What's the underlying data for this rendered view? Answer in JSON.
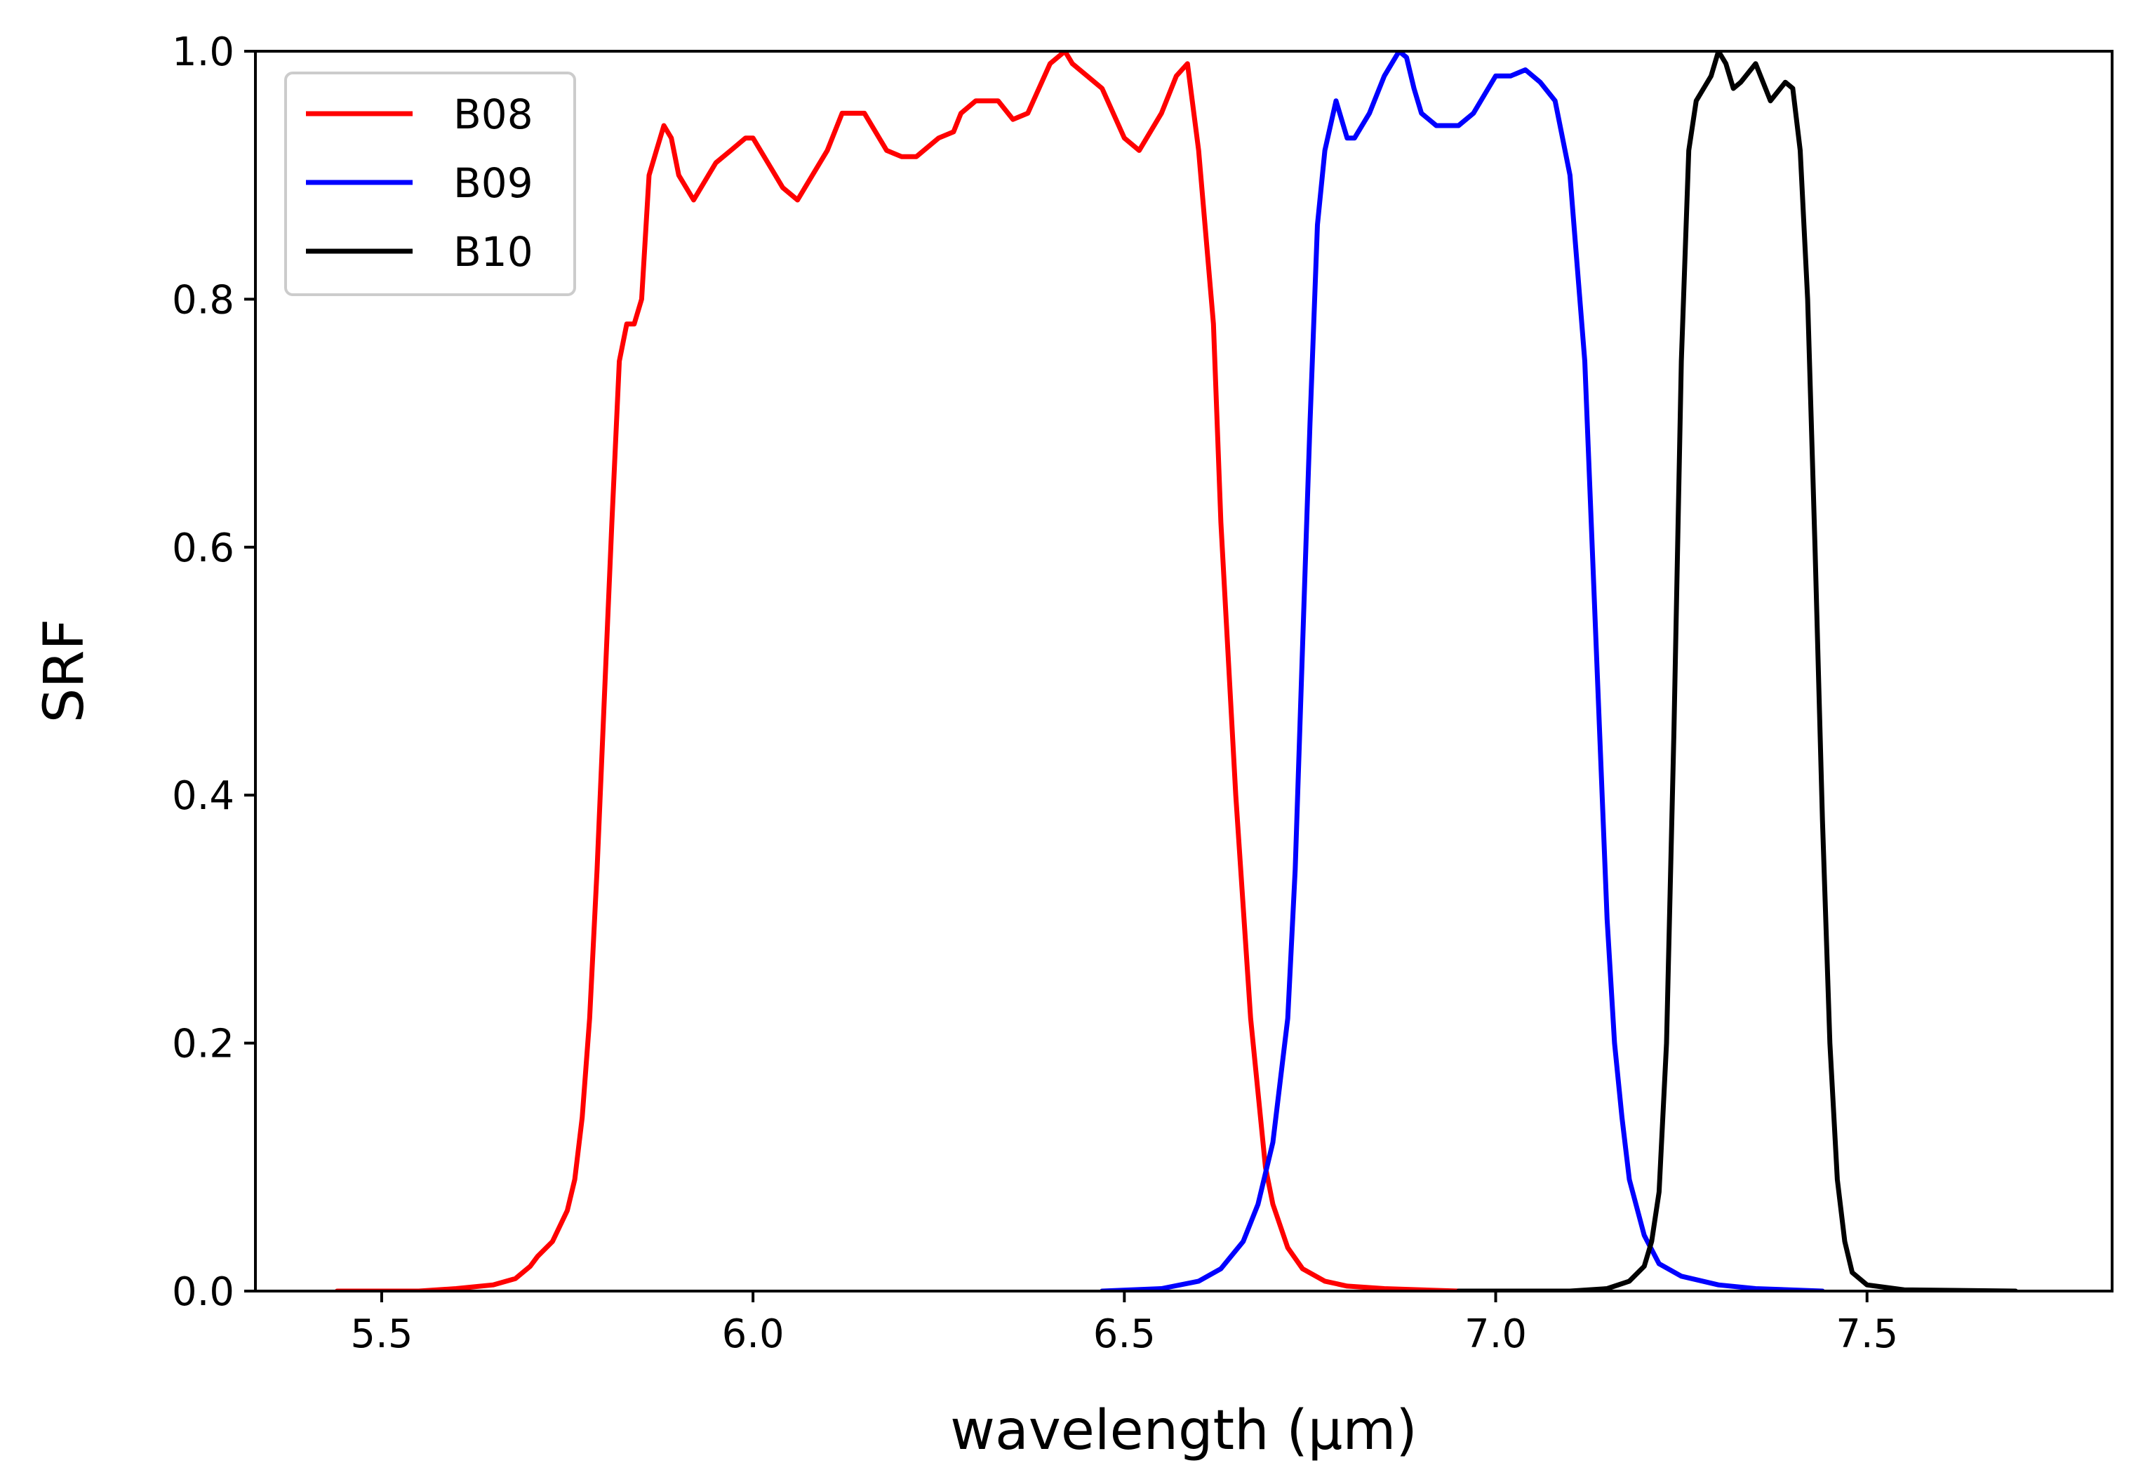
{
  "chart_data": {
    "type": "line",
    "title": "",
    "xlabel": "wavelength (µm)",
    "ylabel": "SRF",
    "xlim": [
      5.33,
      7.83
    ],
    "ylim": [
      0.0,
      1.0
    ],
    "grid": false,
    "legend": "top-left",
    "xticks": [
      5.5,
      6.0,
      6.5,
      7.0,
      7.5
    ],
    "xtick_labels": [
      "5.5",
      "6.0",
      "6.5",
      "7.0",
      "7.5"
    ],
    "yticks": [
      0.0,
      0.2,
      0.4,
      0.6,
      0.8,
      1.0
    ],
    "ytick_labels": [
      "0.0",
      "0.2",
      "0.4",
      "0.6",
      "0.8",
      "1.0"
    ],
    "series": [
      {
        "name": "B08",
        "color": "#ff0000",
        "x": [
          5.44,
          5.55,
          5.6,
          5.65,
          5.68,
          5.7,
          5.71,
          5.73,
          5.75,
          5.76,
          5.77,
          5.78,
          5.79,
          5.8,
          5.81,
          5.82,
          5.83,
          5.84,
          5.85,
          5.86,
          5.87,
          5.875,
          5.88,
          5.89,
          5.9,
          5.92,
          5.94,
          5.95,
          5.97,
          5.99,
          6.0,
          6.02,
          6.04,
          6.06,
          6.08,
          6.1,
          6.12,
          6.15,
          6.18,
          6.2,
          6.22,
          6.25,
          6.27,
          6.28,
          6.3,
          6.33,
          6.35,
          6.37,
          6.4,
          6.42,
          6.43,
          6.45,
          6.47,
          6.5,
          6.52,
          6.55,
          6.57,
          6.585,
          6.6,
          6.62,
          6.63,
          6.65,
          6.67,
          6.69,
          6.7,
          6.72,
          6.74,
          6.77,
          6.8,
          6.85,
          6.95,
          7.0
        ],
        "y": [
          0.0,
          0.0,
          0.002,
          0.005,
          0.01,
          0.02,
          0.028,
          0.04,
          0.065,
          0.09,
          0.14,
          0.22,
          0.34,
          0.48,
          0.62,
          0.75,
          0.78,
          0.78,
          0.8,
          0.9,
          0.92,
          0.93,
          0.94,
          0.93,
          0.9,
          0.88,
          0.9,
          0.91,
          0.92,
          0.93,
          0.93,
          0.91,
          0.89,
          0.88,
          0.9,
          0.92,
          0.95,
          0.95,
          0.92,
          0.915,
          0.915,
          0.93,
          0.935,
          0.95,
          0.96,
          0.96,
          0.945,
          0.95,
          0.99,
          1.0,
          0.99,
          0.98,
          0.97,
          0.93,
          0.92,
          0.95,
          0.98,
          0.99,
          0.92,
          0.78,
          0.62,
          0.4,
          0.22,
          0.1,
          0.07,
          0.035,
          0.018,
          0.008,
          0.004,
          0.002,
          0.0,
          0.0
        ]
      },
      {
        "name": "B09",
        "color": "#0000ff",
        "x": [
          6.47,
          6.55,
          6.6,
          6.63,
          6.66,
          6.68,
          6.7,
          6.72,
          6.73,
          6.74,
          6.75,
          6.76,
          6.77,
          6.785,
          6.8,
          6.81,
          6.83,
          6.85,
          6.87,
          6.88,
          6.89,
          6.9,
          6.92,
          6.95,
          6.97,
          6.99,
          7.0,
          7.02,
          7.04,
          7.06,
          7.08,
          7.1,
          7.12,
          7.13,
          7.14,
          7.15,
          7.16,
          7.17,
          7.18,
          7.2,
          7.22,
          7.25,
          7.3,
          7.35,
          7.44
        ],
        "y": [
          0.0,
          0.002,
          0.008,
          0.018,
          0.04,
          0.07,
          0.12,
          0.22,
          0.34,
          0.52,
          0.7,
          0.86,
          0.92,
          0.96,
          0.93,
          0.93,
          0.95,
          0.98,
          1.0,
          0.995,
          0.97,
          0.95,
          0.94,
          0.94,
          0.95,
          0.97,
          0.98,
          0.98,
          0.985,
          0.975,
          0.96,
          0.9,
          0.75,
          0.6,
          0.45,
          0.3,
          0.2,
          0.14,
          0.09,
          0.045,
          0.022,
          0.012,
          0.005,
          0.002,
          0.0
        ]
      },
      {
        "name": "B10",
        "color": "#000000",
        "x": [
          6.95,
          7.1,
          7.15,
          7.18,
          7.2,
          7.21,
          7.22,
          7.23,
          7.24,
          7.25,
          7.26,
          7.27,
          7.28,
          7.29,
          7.3,
          7.31,
          7.32,
          7.33,
          7.35,
          7.37,
          7.39,
          7.4,
          7.41,
          7.42,
          7.43,
          7.44,
          7.45,
          7.46,
          7.47,
          7.48,
          7.5,
          7.55,
          7.7
        ],
        "y": [
          0.0,
          0.0,
          0.002,
          0.008,
          0.02,
          0.04,
          0.08,
          0.2,
          0.45,
          0.75,
          0.92,
          0.96,
          0.97,
          0.98,
          1.0,
          0.99,
          0.97,
          0.975,
          0.99,
          0.96,
          0.975,
          0.97,
          0.92,
          0.8,
          0.6,
          0.38,
          0.2,
          0.09,
          0.04,
          0.015,
          0.005,
          0.001,
          0.0
        ]
      }
    ]
  }
}
